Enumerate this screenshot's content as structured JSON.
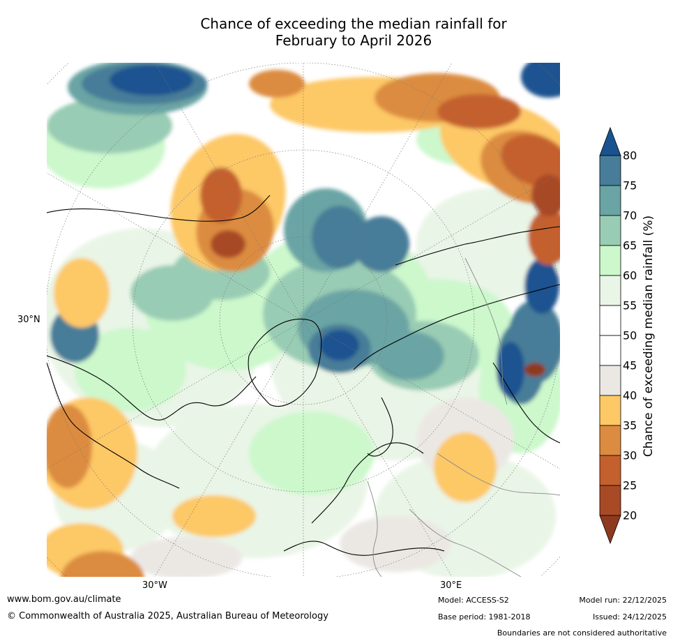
{
  "title": {
    "line1": "Chance of exceeding the median rainfall for",
    "line2": "February to April 2026"
  },
  "map": {
    "projection": "polar stereographic (North Pole)",
    "longitude_labels": [
      "30°W",
      "30°E"
    ],
    "latitude_labels": [
      "30°N"
    ]
  },
  "colorbar": {
    "title": "Chance of exceeding median rainfall (%)",
    "ticks": [
      "20",
      "25",
      "30",
      "35",
      "40",
      "45",
      "50",
      "55",
      "60",
      "65",
      "70",
      "75",
      "80"
    ],
    "colors": {
      "below_20": "#8e3a1e",
      "20_25": "#a84a26",
      "25_30": "#c4602e",
      "30_35": "#dc8c40",
      "35_40": "#fdc866",
      "40_45": "#ebe8e4",
      "45_50": "#ffffff",
      "50_55": "#ffffff",
      "55_60": "#e9f5e6",
      "60_65": "#ccf8cc",
      "65_70": "#99ccb4",
      "70_75": "#6aa4a4",
      "75_80": "#477d98",
      "above_80": "#1a5290"
    }
  },
  "footer": {
    "website": "www.bom.gov.au/climate",
    "copyright": "© Commonwealth of Australia 2025, Australian Bureau of Meteorology",
    "model": "Model: ACCESS-S2",
    "base_period": "Base period: 1981-2018",
    "model_run": "Model run: 22/12/2025",
    "issued": "Issued: 24/12/2025",
    "disclaimer": "Boundaries are not considered authoritative"
  }
}
